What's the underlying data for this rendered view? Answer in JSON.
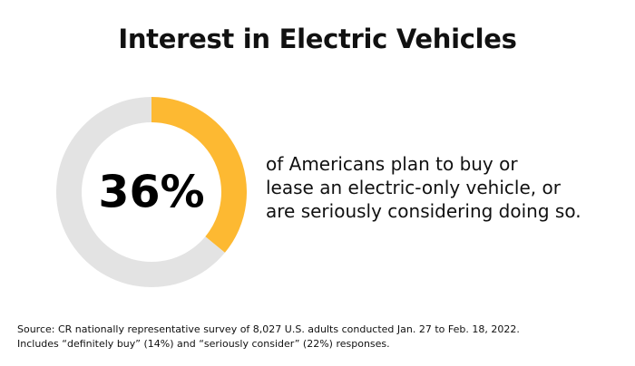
{
  "title": "Interest in Electric Vehicles",
  "chart_data": {
    "type": "pie",
    "title": "Interest in Electric Vehicles",
    "value_label": "36%",
    "slices": [
      {
        "label": "plan to buy or lease / seriously considering",
        "value": 36,
        "color": "#FDB932"
      },
      {
        "label": "",
        "value": 64,
        "color": "#E3E3E3"
      }
    ]
  },
  "description_lines": [
    "of Americans plan to buy or",
    "lease an electric-only vehicle, or",
    "are seriously considering doing so."
  ],
  "source_lines": [
    "Source: CR nationally representative survey of 8,027 U.S. adults conducted Jan. 27 to Feb. 18, 2022.",
    "Includes “definitely buy” (14%) and “seriously consider” (22%) responses."
  ],
  "colors": {
    "accent": "#FDB932",
    "track": "#E3E3E3",
    "text": "#111111"
  }
}
